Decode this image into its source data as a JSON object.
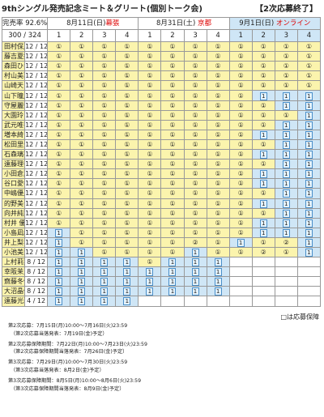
{
  "title": "9thシングル発売記念ミート＆グリート(個別トーク会)",
  "status": "【2次応募終了】",
  "header": {
    "rate_label": "完売率 92.6%",
    "sold_total": "300 / 324"
  },
  "dates": [
    {
      "date": "8月11日(日)",
      "venue": "幕張",
      "online": false
    },
    {
      "date": "8月31日(土) ",
      "venue": "京都",
      "online": false
    },
    {
      "date": "9月1日(日) ",
      "venue": "オンライン",
      "online": true
    }
  ],
  "slot_labels": [
    "1",
    "2",
    "3",
    "4"
  ],
  "rows": [
    {
      "name": "田村保乃",
      "ratio": "12 / 12",
      "cells": [
        "①",
        "①",
        "①",
        "①",
        "①",
        "①",
        "①",
        "①",
        "①",
        "①",
        "①",
        "①"
      ]
    },
    {
      "name": "藤吉夏鈴",
      "ratio": "12 / 12",
      "cells": [
        "①",
        "①",
        "①",
        "①",
        "①",
        "①",
        "①",
        "①",
        "①",
        "①",
        "①",
        "①"
      ]
    },
    {
      "name": "森田ひかる",
      "ratio": "12 / 12",
      "cells": [
        "①",
        "①",
        "①",
        "①",
        "①",
        "①",
        "①",
        "①",
        "①",
        "①",
        "①",
        "①"
      ]
    },
    {
      "name": "村山美羽",
      "ratio": "12 / 12",
      "cells": [
        "①",
        "①",
        "①",
        "①",
        "①",
        "①",
        "①",
        "①",
        "①",
        "①",
        "①",
        "①"
      ]
    },
    {
      "name": "山崎天",
      "ratio": "12 / 12",
      "cells": [
        "①",
        "①",
        "①",
        "①",
        "①",
        "①",
        "①",
        "①",
        "①",
        "①",
        "①",
        "①"
      ]
    },
    {
      "name": "山下瞳月",
      "ratio": "12 / 12",
      "cells": [
        "①",
        "①",
        "①",
        "①",
        "①",
        "①",
        "①",
        "①",
        "①",
        "1",
        "1",
        "1"
      ]
    },
    {
      "name": "守屋麗奈",
      "ratio": "12 / 12",
      "cells": [
        "①",
        "①",
        "①",
        "①",
        "①",
        "①",
        "①",
        "①",
        "①",
        "①",
        "1",
        "1"
      ]
    },
    {
      "name": "大園玲",
      "ratio": "12 / 12",
      "cells": [
        "①",
        "①",
        "①",
        "①",
        "①",
        "①",
        "①",
        "①",
        "①",
        "①",
        "①",
        "1"
      ]
    },
    {
      "name": "武元唯衣",
      "ratio": "12 / 12",
      "cells": [
        "①",
        "①",
        "①",
        "①",
        "①",
        "①",
        "①",
        "①",
        "①",
        "①",
        "1",
        "1"
      ]
    },
    {
      "name": "増本綺良",
      "ratio": "12 / 12",
      "cells": [
        "①",
        "①",
        "①",
        "①",
        "①",
        "①",
        "①",
        "①",
        "①",
        "1",
        "1",
        "1"
      ]
    },
    {
      "name": "松田里奈",
      "ratio": "12 / 12",
      "cells": [
        "①",
        "①",
        "①",
        "①",
        "①",
        "①",
        "①",
        "①",
        "①",
        "①",
        "1",
        "1"
      ]
    },
    {
      "name": "石森璃花",
      "ratio": "12 / 12",
      "cells": [
        "①",
        "①",
        "①",
        "①",
        "①",
        "①",
        "①",
        "①",
        "①",
        "1",
        "1",
        "1"
      ]
    },
    {
      "name": "遠藤理子",
      "ratio": "12 / 12",
      "cells": [
        "①",
        "①",
        "①",
        "①",
        "①",
        "①",
        "①",
        "①",
        "①",
        "①",
        "1",
        "1"
      ]
    },
    {
      "name": "小田倉麗奈",
      "ratio": "12 / 12",
      "cells": [
        "①",
        "①",
        "①",
        "①",
        "①",
        "①",
        "①",
        "①",
        "①",
        "1",
        "1",
        "1"
      ]
    },
    {
      "name": "谷口愛季",
      "ratio": "12 / 12",
      "cells": [
        "①",
        "①",
        "①",
        "①",
        "①",
        "①",
        "①",
        "①",
        "①",
        "1",
        "1",
        "1"
      ]
    },
    {
      "name": "中嶋優月",
      "ratio": "12 / 12",
      "cells": [
        "①",
        "①",
        "①",
        "①",
        "①",
        "①",
        "①",
        "①",
        "①",
        "①",
        "1",
        "1"
      ]
    },
    {
      "name": "的野美青",
      "ratio": "12 / 12",
      "cells": [
        "①",
        "①",
        "①",
        "①",
        "①",
        "①",
        "①",
        "①",
        "①",
        "1",
        "1",
        "1"
      ]
    },
    {
      "name": "向井純葉",
      "ratio": "12 / 12",
      "cells": [
        "①",
        "①",
        "①",
        "①",
        "①",
        "①",
        "①",
        "①",
        "①",
        "①",
        "1",
        "1"
      ]
    },
    {
      "name": "村井 優",
      "ratio": "12 / 12",
      "cells": [
        "①",
        "①",
        "①",
        "①",
        "①",
        "①",
        "①",
        "①",
        "①",
        "1",
        "1",
        "1"
      ]
    },
    {
      "name": "小島凪紗",
      "ratio": "12 / 12",
      "cells": [
        "1",
        "①",
        "①",
        "①",
        "①",
        "①",
        "①",
        "①",
        "①",
        "1",
        "1",
        "1"
      ]
    },
    {
      "name": "井上梨名",
      "ratio": "12 / 12",
      "cells": [
        "1",
        "①",
        "①",
        "①",
        "①",
        "①",
        "②",
        "①",
        "1",
        "①",
        "②",
        "1"
      ]
    },
    {
      "name": "小池美波",
      "ratio": "12 / 12",
      "cells": [
        "1",
        "1",
        "①",
        "①",
        "①",
        "①",
        "1",
        "①",
        "①",
        "②",
        "①",
        "1"
      ]
    },
    {
      "name": "上村莉菜",
      "ratio": "8 / 12",
      "cells": [
        "1",
        "1",
        "1",
        "1",
        "①",
        "1",
        "1",
        "1",
        null,
        null,
        null,
        null
      ]
    },
    {
      "name": "幸阪茉里乃",
      "ratio": "8 / 12",
      "cells": [
        "1",
        "1",
        "1",
        "1",
        "1",
        "1",
        "1",
        "1",
        null,
        null,
        null,
        null
      ]
    },
    {
      "name": "齋藤冬優花",
      "ratio": "8 / 12",
      "cells": [
        "1",
        "1",
        "1",
        "1",
        "1",
        "1",
        "1",
        "1",
        null,
        null,
        null,
        null
      ]
    },
    {
      "name": "大沼晶保",
      "ratio": "8 / 12",
      "cells": [
        "1",
        "1",
        "1",
        "1",
        "1",
        "1",
        "1",
        "1",
        null,
        null,
        null,
        null
      ]
    },
    {
      "name": "遠藤光莉",
      "ratio": "4 / 12",
      "cells": [
        "1",
        "1",
        "1",
        "1",
        null,
        null,
        null,
        null,
        null,
        null,
        null,
        null
      ]
    }
  ],
  "legend_note": "□は応募保障",
  "notes": [
    "第2次応募：7月15日(月)10:00〜7月16日(火)23:59",
    "（第2次応募当落発表：7月19日(金)予定）",
    "第2次応募保障期間：7月22日(月)10:00〜7月23日(火)23:59",
    "（第2次応募保障期間当落発表：7月26日(金)予定）",
    "第3次応募：7月29日(月)10:00〜7月30日(火)23:59",
    "（第3次応募当落発表：8月2日(金)予定）",
    "第3次応募保障期間：8月5日(月)10:00〜8月6日(火)23:59",
    "（第3次応募保障期間当落発表：8月9日(金)予定）"
  ]
}
